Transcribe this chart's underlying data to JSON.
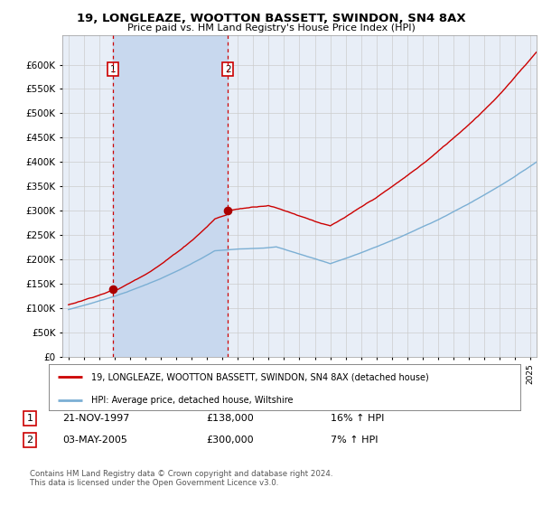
{
  "title": "19, LONGLEAZE, WOOTTON BASSETT, SWINDON, SN4 8AX",
  "subtitle": "Price paid vs. HM Land Registry's House Price Index (HPI)",
  "ylim": [
    0,
    660000
  ],
  "yticks": [
    0,
    50000,
    100000,
    150000,
    200000,
    250000,
    300000,
    350000,
    400000,
    450000,
    500000,
    550000,
    600000
  ],
  "xlim_start": 1994.6,
  "xlim_end": 2025.4,
  "background_color": "#ffffff",
  "plot_bg_color": "#e8eef7",
  "grid_color": "#cccccc",
  "shade_color": "#c8d8ee",
  "sale1_date": 1997.89,
  "sale1_price": 138000,
  "sale1_label": "1",
  "sale2_date": 2005.34,
  "sale2_price": 300000,
  "sale2_label": "2",
  "sale1_info": "21-NOV-1997",
  "sale1_amount": "£138,000",
  "sale1_hpi": "16% ↑ HPI",
  "sale2_info": "03-MAY-2005",
  "sale2_amount": "£300,000",
  "sale2_hpi": "7% ↑ HPI",
  "legend_label1": "19, LONGLEAZE, WOOTTON BASSETT, SWINDON, SN4 8AX (detached house)",
  "legend_label2": "HPI: Average price, detached house, Wiltshire",
  "footer": "Contains HM Land Registry data © Crown copyright and database right 2024.\nThis data is licensed under the Open Government Licence v3.0.",
  "line_color_red": "#cc0000",
  "line_color_blue": "#7bafd4",
  "dot_color_red": "#aa0000",
  "vline_color": "#cc0000"
}
